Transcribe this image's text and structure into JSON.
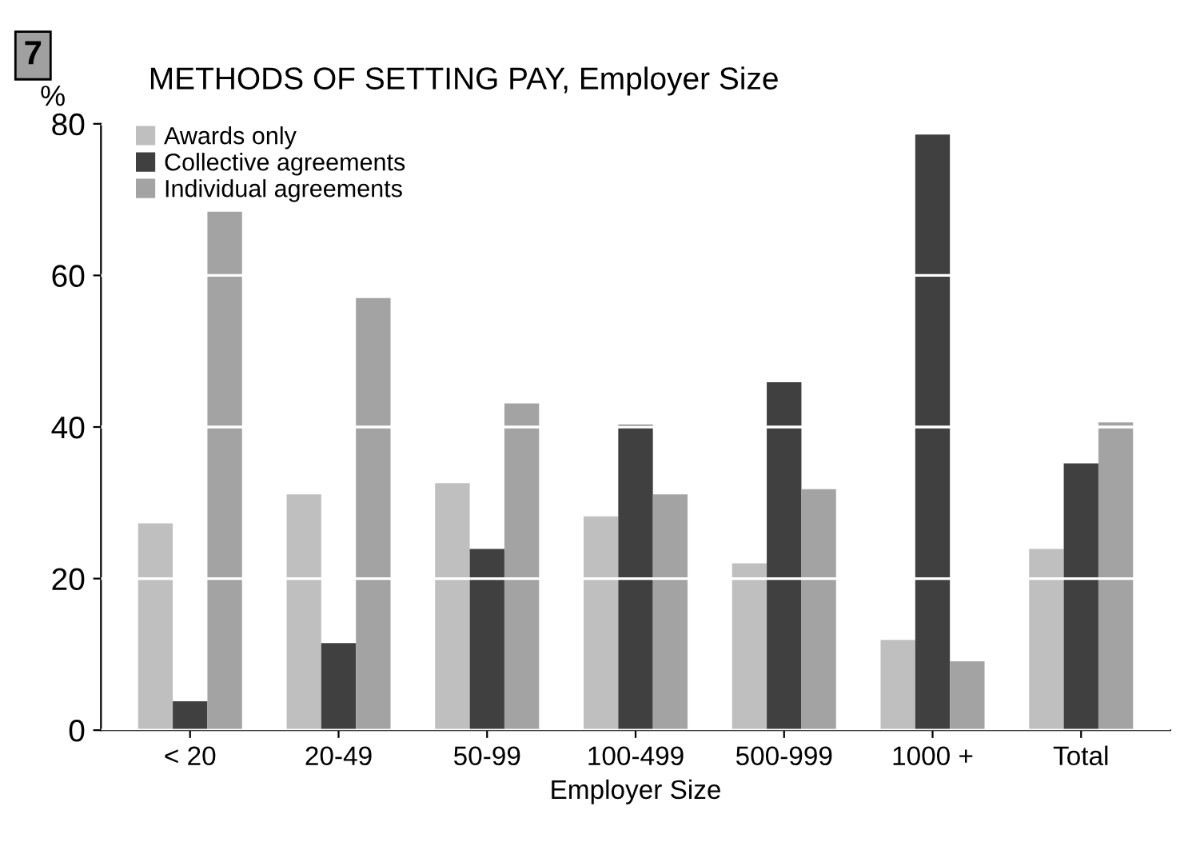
{
  "chart_data": {
    "type": "bar",
    "title": "METHODS OF SETTING PAY, Employer Size",
    "xlabel": "Employer Size",
    "ylabel": "%",
    "annotations": [
      "7"
    ],
    "categories": [
      "< 20",
      "20-49",
      "50-99",
      "100-499",
      "500-999",
      "1000 +",
      "Total"
    ],
    "series": [
      {
        "name": "Awards only",
        "color": "#bfbfbf",
        "values": [
          27.3,
          31.1,
          32.6,
          28.2,
          22.0,
          11.9,
          23.9
        ]
      },
      {
        "name": "Collective agreements",
        "color": "#404040",
        "values": [
          3.8,
          11.5,
          23.9,
          40.3,
          45.9,
          78.6,
          35.2
        ]
      },
      {
        "name": "Individual agreements",
        "color": "#a3a3a3",
        "values": [
          68.4,
          57.0,
          43.1,
          31.1,
          31.8,
          9.1,
          40.6
        ]
      }
    ],
    "ylim": [
      0,
      80
    ],
    "yticks": [
      0,
      20,
      40,
      60,
      80
    ],
    "grid": "y",
    "legend": "top left"
  }
}
